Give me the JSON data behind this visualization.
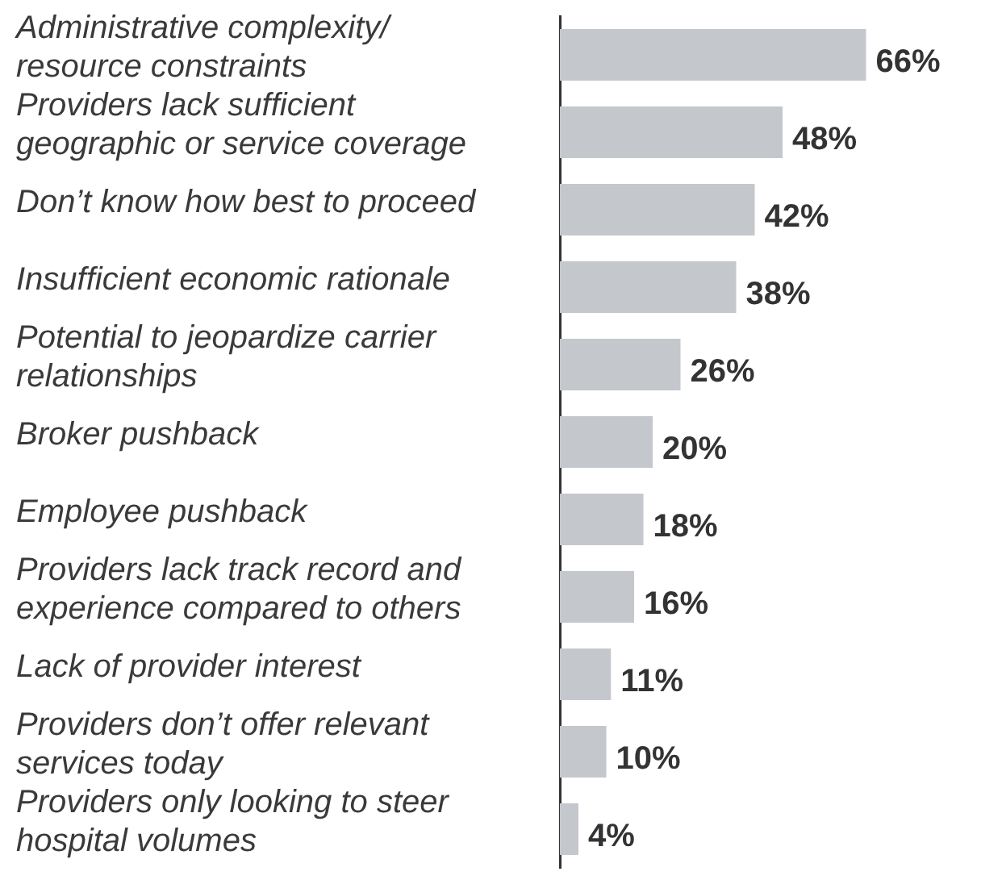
{
  "chart_data": {
    "type": "bar",
    "orientation": "horizontal",
    "categories": [
      "Administrative complexity/ resource constraints",
      "Providers lack sufficient geographic or service coverage",
      "Don’t know how best to proceed",
      "Insufficient economic rationale",
      "Potential to jeopardize carrier relationships",
      "Broker pushback",
      "Employee pushback",
      "Providers lack track record and experience compared to others",
      "Lack of provider interest",
      "Providers don’t offer relevant services today",
      "Providers only looking to steer hospital volumes"
    ],
    "values": [
      66,
      48,
      42,
      38,
      26,
      20,
      18,
      16,
      11,
      10,
      4
    ],
    "value_labels": [
      "66%",
      "48%",
      "42%",
      "38%",
      "26%",
      "20%",
      "18%",
      "16%",
      "11%",
      "10%",
      "4%"
    ],
    "color": "#c4c8cc"
  }
}
